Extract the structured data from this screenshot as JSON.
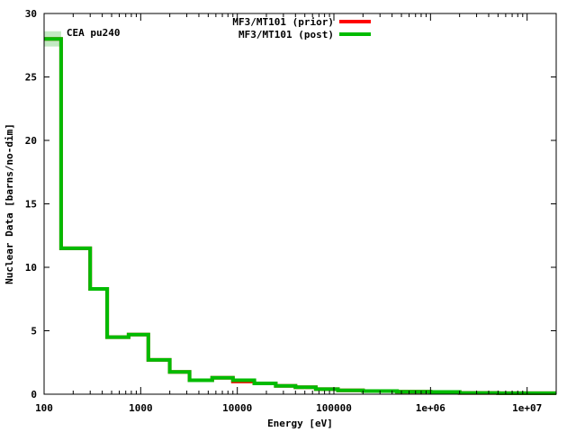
{
  "chart_data": {
    "type": "line",
    "step": true,
    "xscale": "log",
    "xlabel": "Energy [eV]",
    "ylabel": "Nuclear Data [barns/no-dim]",
    "xlim": [
      100,
      20000000
    ],
    "ylim": [
      0,
      30
    ],
    "xticks": [
      {
        "value": 100,
        "label": "100"
      },
      {
        "value": 1000,
        "label": "1000"
      },
      {
        "value": 10000,
        "label": "10000"
      },
      {
        "value": 100000,
        "label": "100000"
      },
      {
        "value": 1000000,
        "label": "1e+06"
      },
      {
        "value": 10000000,
        "label": "1e+07"
      }
    ],
    "yticks": [
      0,
      5,
      10,
      15,
      20,
      25,
      30
    ],
    "legend_position": "top-center",
    "annotation": "CEA pu240",
    "series": [
      {
        "name": "MF3/MT101 (prior)",
        "color": "#ff0000",
        "points": [
          {
            "x": 100,
            "y": 28.0
          },
          {
            "x": 150,
            "y": 11.5
          },
          {
            "x": 300,
            "y": 8.3
          },
          {
            "x": 450,
            "y": 4.5
          },
          {
            "x": 750,
            "y": 4.7
          },
          {
            "x": 1200,
            "y": 2.7
          },
          {
            "x": 2000,
            "y": 1.75
          },
          {
            "x": 3200,
            "y": 1.1
          },
          {
            "x": 5500,
            "y": 1.3
          },
          {
            "x": 9000,
            "y": 1.0
          },
          {
            "x": 15000,
            "y": 0.85
          },
          {
            "x": 25000,
            "y": 0.65
          },
          {
            "x": 40000,
            "y": 0.55
          },
          {
            "x": 65000,
            "y": 0.4
          },
          {
            "x": 110000,
            "y": 0.3
          },
          {
            "x": 200000,
            "y": 0.25
          },
          {
            "x": 450000,
            "y": 0.2
          },
          {
            "x": 1000000,
            "y": 0.18
          },
          {
            "x": 2000000,
            "y": 0.1
          },
          {
            "x": 5000000,
            "y": 0.08
          },
          {
            "x": 20000000,
            "y": 0.08
          }
        ]
      },
      {
        "name": "MF3/MT101 (post)",
        "color": "#00bb00",
        "points": [
          {
            "x": 100,
            "y": 28.0
          },
          {
            "x": 150,
            "y": 11.5
          },
          {
            "x": 300,
            "y": 8.3
          },
          {
            "x": 450,
            "y": 4.5
          },
          {
            "x": 750,
            "y": 4.7
          },
          {
            "x": 1200,
            "y": 2.7
          },
          {
            "x": 2000,
            "y": 1.75
          },
          {
            "x": 3200,
            "y": 1.1
          },
          {
            "x": 5500,
            "y": 1.3
          },
          {
            "x": 9000,
            "y": 1.1
          },
          {
            "x": 15000,
            "y": 0.85
          },
          {
            "x": 25000,
            "y": 0.65
          },
          {
            "x": 40000,
            "y": 0.55
          },
          {
            "x": 65000,
            "y": 0.4
          },
          {
            "x": 110000,
            "y": 0.3
          },
          {
            "x": 200000,
            "y": 0.25
          },
          {
            "x": 450000,
            "y": 0.2
          },
          {
            "x": 1000000,
            "y": 0.18
          },
          {
            "x": 2000000,
            "y": 0.1
          },
          {
            "x": 5000000,
            "y": 0.08
          },
          {
            "x": 20000000,
            "y": 0.08
          }
        ]
      }
    ]
  }
}
